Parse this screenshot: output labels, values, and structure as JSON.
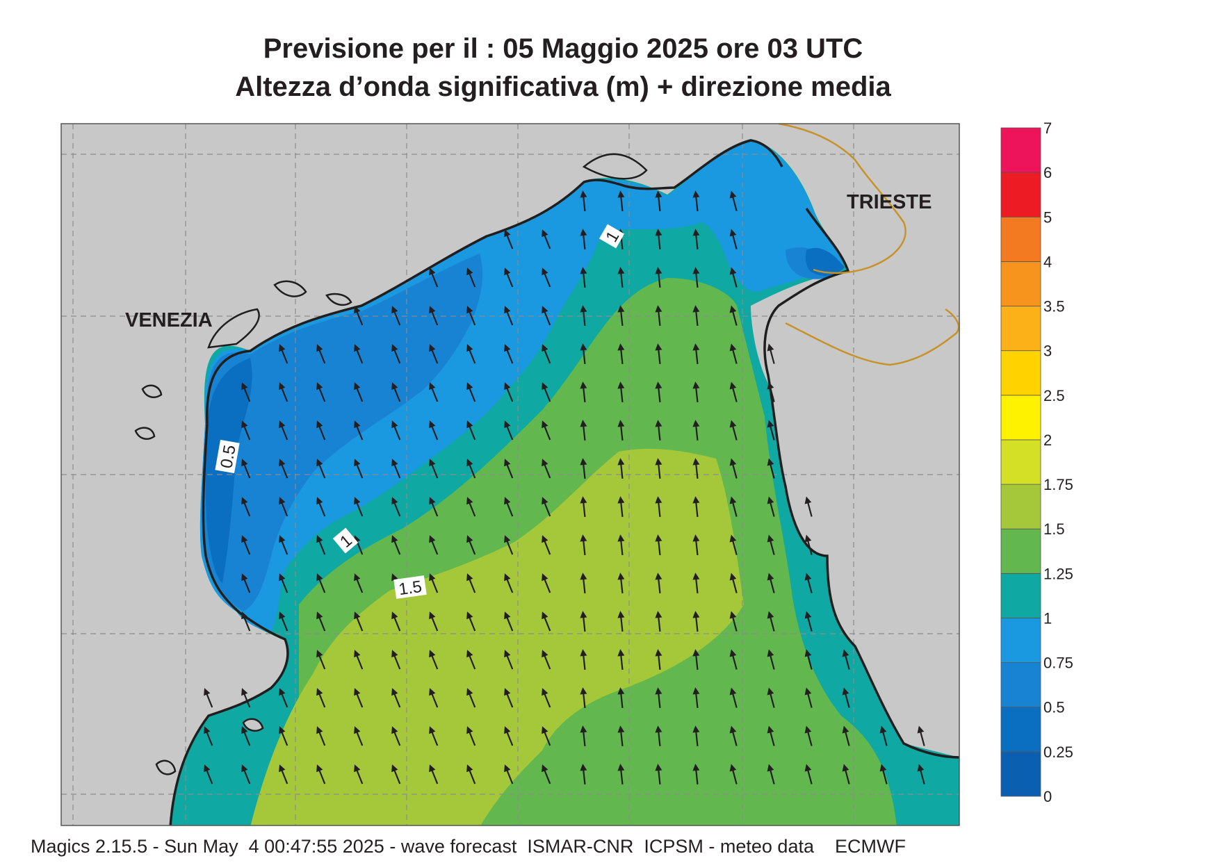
{
  "title_line1": "Previsione per il  :  05   Maggio  2025   ore 03 UTC",
  "title_line2": "Altezza d’onda significativa (m) + direzione media",
  "cities": [
    {
      "name": "VENEZIA"
    },
    {
      "name": "TRIESTE"
    }
  ],
  "contour_labels": [
    "1",
    "0.5",
    "1",
    "1.5"
  ],
  "colorbar": {
    "levels": [
      "0",
      "0.25",
      "0.5",
      "0.75",
      "1",
      "1.25",
      "1.5",
      "1.75",
      "2",
      "2.5",
      "3",
      "3.5",
      "4",
      "5",
      "6",
      "7"
    ],
    "colors": [
      "#0b5fb0",
      "#0a6fc0",
      "#1983d3",
      "#1a98e0",
      "#0fa8a3",
      "#62b84e",
      "#a5c83a",
      "#d4e025",
      "#fff200",
      "#ffd200",
      "#fbb117",
      "#f7941d",
      "#f47a22",
      "#ed1c24",
      "#ed145b"
    ]
  },
  "colors": {
    "land": "#c8c8c8",
    "coast": "#1f1f1f",
    "border": "#c8922a",
    "grid": "#8c8c8c",
    "arrow": "#231f20"
  },
  "footer": "Magics 2.15.5 - Sun May  4 00:47:55 2025 - wave forecast  ISMAR-CNR  ICPSM - meteo data    ECMWF"
}
